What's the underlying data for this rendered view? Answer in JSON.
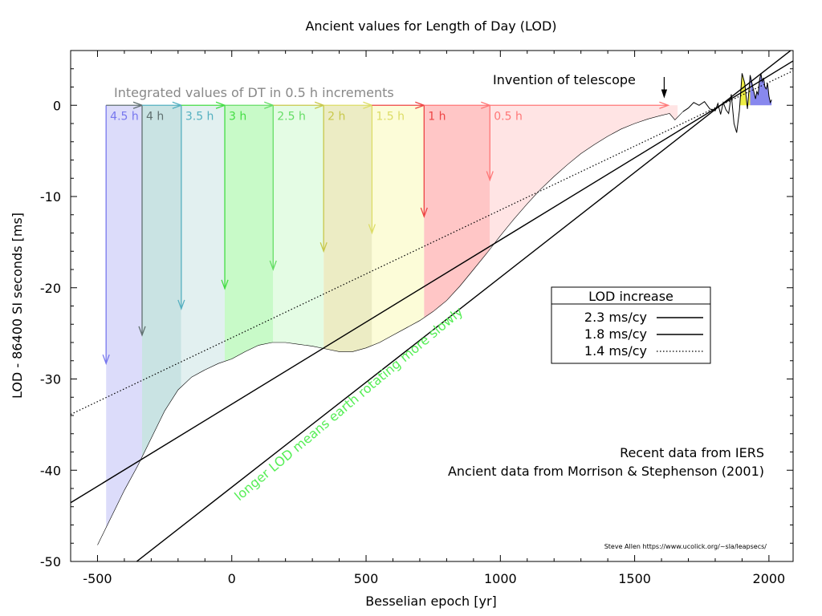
{
  "chart_data": {
    "type": "area",
    "title": "Ancient values for Length of Day (LOD)",
    "xlabel": "Besselian epoch [yr]",
    "ylabel": "LOD - 86400 SI seconds [ms]",
    "xlim": [
      -600,
      2090
    ],
    "ylim": [
      -50,
      6
    ],
    "grid": false,
    "x_ticks": [
      -500,
      0,
      500,
      1000,
      1500,
      2000
    ],
    "x_tick_labels": [
      "-500",
      "0",
      "500",
      "1000",
      "1500",
      "2000"
    ],
    "y_ticks": [
      0,
      -10,
      -20,
      -30,
      -40,
      -50
    ],
    "y_tick_labels": [
      "0",
      "-10",
      "-20",
      "-30",
      "-40",
      "-50"
    ],
    "ancient_curve": {
      "x": [
        -500,
        -450,
        -400,
        -350,
        -300,
        -250,
        -200,
        -150,
        -100,
        -50,
        0,
        50,
        100,
        150,
        200,
        250,
        300,
        350,
        400,
        450,
        500,
        550,
        600,
        650,
        700,
        750,
        800,
        850,
        900,
        950,
        1000,
        1050,
        1100,
        1150,
        1200,
        1250,
        1300,
        1350,
        1400,
        1450,
        1500,
        1550,
        1600,
        1630,
        1650,
        1680
      ],
      "y": [
        -48.2,
        -45.2,
        -42.2,
        -39.5,
        -36.5,
        -33.5,
        -31.2,
        -29.8,
        -29.0,
        -28.3,
        -27.8,
        -27.0,
        -26.3,
        -26.0,
        -26.0,
        -26.2,
        -26.4,
        -26.7,
        -27.0,
        -27.0,
        -26.6,
        -26.0,
        -25.2,
        -24.4,
        -23.6,
        -22.6,
        -21.4,
        -19.8,
        -18.0,
        -16.2,
        -14.3,
        -12.5,
        -10.8,
        -9.2,
        -7.8,
        -6.5,
        -5.3,
        -4.3,
        -3.4,
        -2.6,
        -2.0,
        -1.5,
        -1.1,
        -0.9,
        -1.6,
        -0.7
      ]
    },
    "recent_curve": {
      "x": [
        1680,
        1700,
        1720,
        1740,
        1760,
        1780,
        1800,
        1810,
        1820,
        1830,
        1840,
        1850,
        1860,
        1870,
        1880,
        1890,
        1900,
        1910,
        1920,
        1930,
        1940,
        1950,
        1955,
        1960,
        1965,
        1970,
        1975,
        1980,
        1985,
        1990,
        1995,
        2000,
        2005,
        2010
      ],
      "y": [
        -0.7,
        -0.3,
        0.3,
        0.0,
        0.4,
        -0.4,
        -0.6,
        0.2,
        -1.0,
        0.3,
        -0.5,
        -0.9,
        1.2,
        -2.0,
        -3.0,
        -0.6,
        3.5,
        2.4,
        -0.4,
        3.3,
        2.0,
        0.7,
        1.5,
        1.2,
        2.8,
        3.5,
        2.6,
        3.0,
        2.0,
        1.8,
        2.4,
        1.0,
        0.3,
        0.6
      ]
    },
    "fill_bands": [
      {
        "label": "4.5 h",
        "x0": -468,
        "x1": -334,
        "color": "#dcdcfa",
        "arrow_color": "#7777ee",
        "arrow_tip": -28.3
      },
      {
        "label": "4 h",
        "x0": -334,
        "x1": -188,
        "color": "#c9e3e3",
        "arrow_color": "#607070",
        "arrow_tip": -25.2
      },
      {
        "label": "3.5 h",
        "x0": -188,
        "x1": -26,
        "color": "#e2f0f0",
        "arrow_color": "#55b0c0",
        "arrow_tip": -22.3
      },
      {
        "label": "3 h",
        "x0": -26,
        "x1": 154,
        "color": "#c8fac8",
        "arrow_color": "#44dd44",
        "arrow_tip": -20.1
      },
      {
        "label": "2.5 h",
        "x0": 154,
        "x1": 342,
        "color": "#e4fce4",
        "arrow_color": "#66dd66",
        "arrow_tip": -18.0
      },
      {
        "label": "2 h",
        "x0": 342,
        "x1": 522,
        "color": "#ececc4",
        "arrow_color": "#c8c84a",
        "arrow_tip": -16.0
      },
      {
        "label": "1.5 h",
        "x0": 522,
        "x1": 716,
        "color": "#fcfcd8",
        "arrow_color": "#dddd66",
        "arrow_tip": -14.0
      },
      {
        "label": "1 h",
        "x0": 716,
        "x1": 961,
        "color": "#ffc6c6",
        "arrow_color": "#ee4444",
        "arrow_tip": -12.2
      },
      {
        "label": "0.5 h",
        "x0": 961,
        "x1": 1660,
        "color": "#ffe4e4",
        "arrow_color": "#ff7777",
        "arrow_tip": -8.2
      }
    ],
    "trend_lines": [
      {
        "name": "2.3 ms/cy",
        "slope_ms_per_cy": 2.3,
        "y_at_1820": 0.0,
        "style": "solid"
      },
      {
        "name": "1.8 ms/cy",
        "slope_ms_per_cy": 1.8,
        "y_at_1820": 0.0,
        "style": "solid"
      },
      {
        "name": "1.4 ms/cy",
        "slope_ms_per_cy": 1.4,
        "y_at_1820": 0.0,
        "style": "dotted"
      }
    ],
    "legend": {
      "title": "LOD increase",
      "placement": "center-right"
    },
    "annotations": {
      "integrated": "Integrated values of DT in 0.5 h increments",
      "telescope": "Invention of telescope",
      "telescope_year": 1610,
      "slow": "longer LOD means earth rotating more slowly",
      "source1": "Recent data from IERS",
      "source2": "Ancient data from Morrison & Stephenson (2001)",
      "credit": "Steve Allen  https://www.ucolick.org/~sla/leapsecs/"
    },
    "colors": {
      "slow_text": "#55ee55",
      "integrated_text": "#888888",
      "blue_recent": "#8888ee",
      "yellow_recent": "#eeee44"
    }
  }
}
